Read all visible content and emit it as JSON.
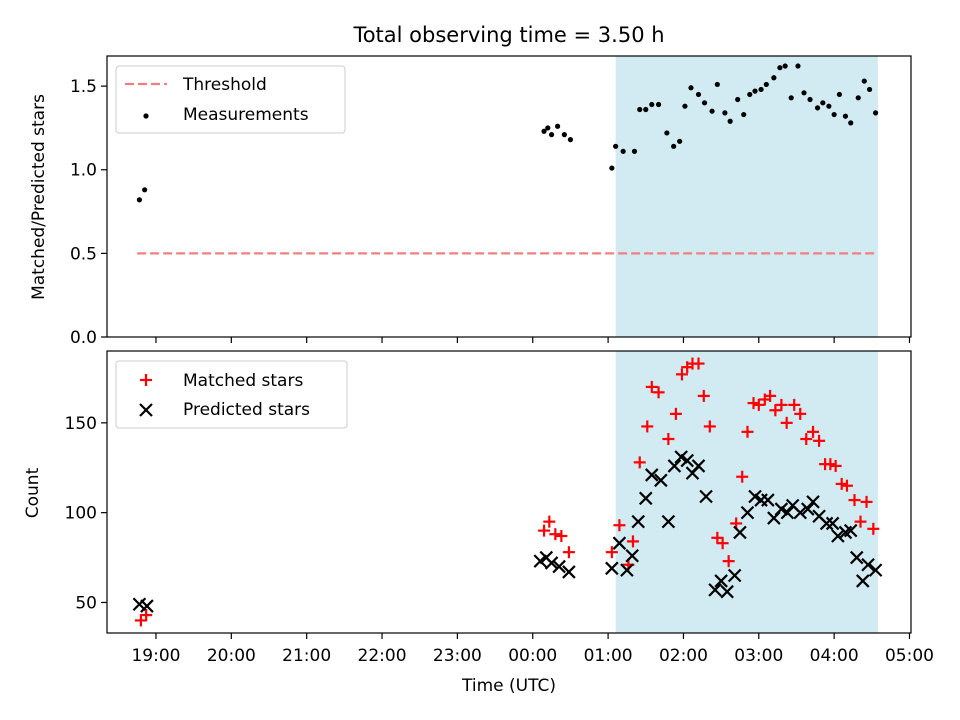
{
  "figure": {
    "title": "Total observing time = 3.50 h"
  },
  "chart_data": [
    {
      "type": "scatter",
      "panel": "top",
      "ylabel": "Matched/Predicted stars",
      "xlabel": "",
      "ylim": [
        0,
        1.68
      ],
      "yticks": [
        0.0,
        0.5,
        1.0,
        1.5
      ],
      "ytick_labels": [
        "0.0",
        "0.5",
        "1.0",
        "1.5"
      ],
      "grid": false,
      "legend_position": "top-left",
      "shaded_region": {
        "x_start_hours": 25.1,
        "x_end_hours": 28.58,
        "color": "#add8e6"
      },
      "threshold": {
        "name": "Threshold",
        "value": 0.5,
        "x_range_hours": [
          18.75,
          28.58
        ],
        "color": "#f08080",
        "style": "dashed"
      },
      "series": [
        {
          "name": "Measurements",
          "color": "#000000",
          "marker": "dot",
          "points": [
            [
              18.78,
              0.82
            ],
            [
              18.85,
              0.88
            ],
            [
              24.15,
              1.23
            ],
            [
              24.2,
              1.25
            ],
            [
              24.25,
              1.21
            ],
            [
              24.33,
              1.26
            ],
            [
              24.42,
              1.21
            ],
            [
              24.5,
              1.18
            ],
            [
              25.05,
              1.01
            ],
            [
              25.1,
              1.14
            ],
            [
              25.2,
              1.11
            ],
            [
              25.35,
              1.11
            ],
            [
              25.42,
              1.36
            ],
            [
              25.5,
              1.36
            ],
            [
              25.58,
              1.39
            ],
            [
              25.67,
              1.39
            ],
            [
              25.78,
              1.22
            ],
            [
              25.87,
              1.14
            ],
            [
              25.95,
              1.17
            ],
            [
              26.02,
              1.38
            ],
            [
              26.1,
              1.49
            ],
            [
              26.2,
              1.45
            ],
            [
              26.28,
              1.4
            ],
            [
              26.38,
              1.35
            ],
            [
              26.45,
              1.51
            ],
            [
              26.55,
              1.34
            ],
            [
              26.62,
              1.29
            ],
            [
              26.72,
              1.42
            ],
            [
              26.8,
              1.33
            ],
            [
              26.88,
              1.45
            ],
            [
              26.95,
              1.47
            ],
            [
              27.03,
              1.48
            ],
            [
              27.1,
              1.51
            ],
            [
              27.2,
              1.55
            ],
            [
              27.28,
              1.61
            ],
            [
              27.35,
              1.62
            ],
            [
              27.43,
              1.43
            ],
            [
              27.52,
              1.62
            ],
            [
              27.6,
              1.46
            ],
            [
              27.68,
              1.42
            ],
            [
              27.78,
              1.37
            ],
            [
              27.85,
              1.4
            ],
            [
              27.93,
              1.38
            ],
            [
              28.0,
              1.33
            ],
            [
              28.07,
              1.45
            ],
            [
              28.15,
              1.32
            ],
            [
              28.22,
              1.28
            ],
            [
              28.32,
              1.43
            ],
            [
              28.4,
              1.53
            ],
            [
              28.47,
              1.48
            ],
            [
              28.55,
              1.34
            ]
          ]
        }
      ]
    },
    {
      "type": "scatter",
      "panel": "bottom",
      "ylabel": "Count",
      "xlabel": "Time (UTC)",
      "ylim": [
        33,
        190
      ],
      "yticks": [
        50,
        100,
        150
      ],
      "ytick_labels": [
        "50",
        "100",
        "150"
      ],
      "xlim_hours": [
        18.35,
        29.02
      ],
      "xticks_hours": [
        19,
        20,
        21,
        22,
        23,
        24,
        25,
        26,
        27,
        28,
        29
      ],
      "xtick_labels": [
        "19:00",
        "20:00",
        "21:00",
        "22:00",
        "23:00",
        "00:00",
        "01:00",
        "02:00",
        "03:00",
        "04:00",
        "05:00"
      ],
      "grid": false,
      "legend_position": "top-left",
      "shaded_region": {
        "x_start_hours": 25.1,
        "x_end_hours": 28.58,
        "color": "#add8e6"
      },
      "series": [
        {
          "name": "Matched stars",
          "color": "#ff0000",
          "marker": "plus",
          "points": [
            [
              18.8,
              40
            ],
            [
              18.87,
              43
            ],
            [
              24.15,
              90
            ],
            [
              24.22,
              95
            ],
            [
              24.3,
              88
            ],
            [
              24.38,
              87
            ],
            [
              24.48,
              78
            ],
            [
              25.05,
              78
            ],
            [
              25.15,
              93
            ],
            [
              25.27,
              71
            ],
            [
              25.33,
              84
            ],
            [
              25.42,
              128
            ],
            [
              25.52,
              148
            ],
            [
              25.58,
              170
            ],
            [
              25.67,
              167
            ],
            [
              25.8,
              141
            ],
            [
              25.9,
              155
            ],
            [
              25.98,
              177
            ],
            [
              26.05,
              181
            ],
            [
              26.12,
              183
            ],
            [
              26.2,
              183
            ],
            [
              26.27,
              165
            ],
            [
              26.35,
              148
            ],
            [
              26.45,
              86
            ],
            [
              26.52,
              83
            ],
            [
              26.6,
              73
            ],
            [
              26.7,
              94
            ],
            [
              26.78,
              120
            ],
            [
              26.85,
              145
            ],
            [
              26.93,
              161
            ],
            [
              27.0,
              160
            ],
            [
              27.08,
              163
            ],
            [
              27.15,
              165
            ],
            [
              27.22,
              157
            ],
            [
              27.3,
              160
            ],
            [
              27.37,
              150
            ],
            [
              27.47,
              160
            ],
            [
              27.55,
              155
            ],
            [
              27.63,
              141
            ],
            [
              27.72,
              145
            ],
            [
              27.8,
              140
            ],
            [
              27.88,
              127
            ],
            [
              27.95,
              127
            ],
            [
              28.02,
              126
            ],
            [
              28.1,
              116
            ],
            [
              28.17,
              115
            ],
            [
              28.27,
              107
            ],
            [
              28.35,
              95
            ],
            [
              28.43,
              106
            ],
            [
              28.52,
              91
            ]
          ]
        },
        {
          "name": "Predicted stars",
          "color": "#000000",
          "marker": "x",
          "points": [
            [
              18.78,
              49
            ],
            [
              18.88,
              48
            ],
            [
              24.1,
              73
            ],
            [
              24.18,
              75
            ],
            [
              24.25,
              72
            ],
            [
              24.35,
              70
            ],
            [
              24.48,
              67
            ],
            [
              25.05,
              69
            ],
            [
              25.15,
              83
            ],
            [
              25.25,
              68
            ],
            [
              25.32,
              76
            ],
            [
              25.4,
              95
            ],
            [
              25.5,
              108
            ],
            [
              25.58,
              121
            ],
            [
              25.7,
              118
            ],
            [
              25.8,
              95
            ],
            [
              25.88,
              126
            ],
            [
              25.97,
              131
            ],
            [
              26.05,
              129
            ],
            [
              26.12,
              122
            ],
            [
              26.2,
              126
            ],
            [
              26.3,
              109
            ],
            [
              26.42,
              57
            ],
            [
              26.5,
              62
            ],
            [
              26.58,
              56
            ],
            [
              26.68,
              65
            ],
            [
              26.75,
              89
            ],
            [
              26.85,
              100
            ],
            [
              26.95,
              109
            ],
            [
              27.03,
              107
            ],
            [
              27.12,
              107
            ],
            [
              27.2,
              97
            ],
            [
              27.3,
              102
            ],
            [
              27.38,
              100
            ],
            [
              27.45,
              104
            ],
            [
              27.55,
              100
            ],
            [
              27.65,
              102
            ],
            [
              27.72,
              106
            ],
            [
              27.8,
              98
            ],
            [
              27.9,
              94
            ],
            [
              27.98,
              94
            ],
            [
              28.05,
              87
            ],
            [
              28.15,
              89
            ],
            [
              28.22,
              90
            ],
            [
              28.3,
              75
            ],
            [
              28.38,
              62
            ],
            [
              28.45,
              71
            ],
            [
              28.55,
              68
            ]
          ]
        }
      ]
    }
  ]
}
